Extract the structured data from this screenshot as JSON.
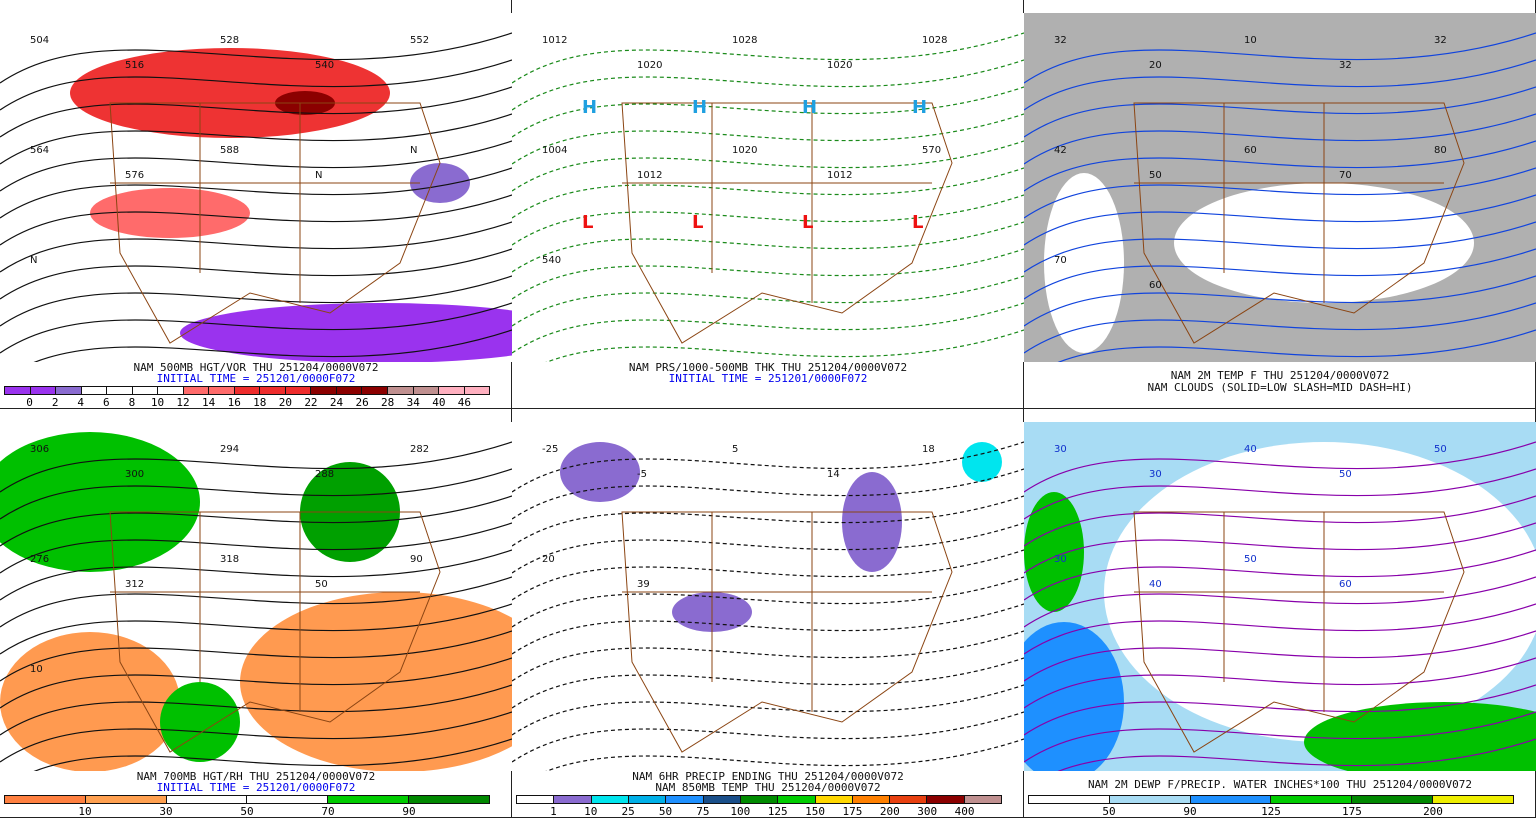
{
  "panels": [
    {
      "id": "p1",
      "title": "NAM 500MB HGT/VOR THU 251204/0000V072",
      "subtitle": "INITIAL TIME = 251201/0000F072",
      "map_labels": [
        "504",
        "516",
        "528",
        "540",
        "552",
        "564",
        "576",
        "588",
        "N",
        "N",
        "N"
      ],
      "colorbar": {
        "colors": [
          "#9a33ee",
          "#9a33ee",
          "#8a6bd0",
          "#ffffff",
          "#ffffff",
          "#ffffff",
          "#ffffff",
          "#ff6b6b",
          "#ff6b6b",
          "#ee2c2c",
          "#ee2c2c",
          "#ee2c2c",
          "#8b0000",
          "#8b0000",
          "#8b0000",
          "#c09090",
          "#c09090",
          "#ffb0c0",
          "#ffb0c0"
        ],
        "labels": [
          "0",
          "2",
          "4",
          "6",
          "8",
          "10",
          "12",
          "14",
          "16",
          "18",
          "20",
          "22",
          "24",
          "26",
          "28",
          "34",
          "40",
          "46"
        ]
      }
    },
    {
      "id": "p2",
      "title": "NAM PRS/1000-500MB THK THU 251204/0000V072",
      "subtitle": "INITIAL TIME = 251201/0000F072",
      "map_labels": [
        "1012",
        "1020",
        "1028",
        "1020",
        "1028",
        "1004",
        "1012",
        "1020",
        "1012",
        "570",
        "540"
      ],
      "highs_lows": [
        "H",
        "H",
        "H",
        "H",
        "L",
        "L",
        "L",
        "L"
      ]
    },
    {
      "id": "p3",
      "title": "NAM 2M TEMP F THU 251204/0000V072",
      "subtitle": "NAM CLOUDS (SOLID=LOW SLASH=MID DASH=HI)",
      "map_labels": [
        "32",
        "20",
        "10",
        "32",
        "32",
        "42",
        "50",
        "60",
        "70",
        "80",
        "70",
        "60"
      ]
    },
    {
      "id": "p4",
      "title": "NAM 700MB HGT/RH THU 251204/0000V072",
      "subtitle": "INITIAL TIME = 251201/0000F072",
      "map_labels": [
        "306",
        "300",
        "294",
        "288",
        "282",
        "276",
        "312",
        "318",
        "50",
        "90",
        "10"
      ],
      "colorbar": {
        "colors": [
          "#ff8040",
          "#ffa050",
          "#ffffff",
          "#ffffff",
          "#00cc00",
          "#008800"
        ],
        "labels": [
          "10",
          "30",
          "50",
          "70",
          "90"
        ]
      }
    },
    {
      "id": "p5",
      "title": "NAM 6HR PRECIP ENDING THU 251204/0000V072",
      "subtitle": "NAM 850MB TEMP THU 251204/0000V072",
      "map_labels": [
        "-25",
        "-5",
        "5",
        "14",
        "18",
        "20",
        "39"
      ],
      "colorbar": {
        "colors": [
          "#ffffff",
          "#8a6bd0",
          "#00e5ee",
          "#00b0e8",
          "#1e90ff",
          "#1a4f8a",
          "#008b00",
          "#00cd00",
          "#ffd700",
          "#ff8000",
          "#e84010",
          "#8b0000",
          "#c09090"
        ],
        "labels": [
          "1",
          "10",
          "25",
          "50",
          "75",
          "100",
          "125",
          "150",
          "175",
          "200",
          "300",
          "400"
        ]
      }
    },
    {
      "id": "p6",
      "title": "NAM 2M DEWP F/PRECIP. WATER INCHES*100 THU 251204/0000V072",
      "subtitle": "",
      "map_labels": [
        "30",
        "30",
        "40",
        "50",
        "50",
        "30",
        "40",
        "50",
        "60"
      ],
      "colorbar": {
        "colors": [
          "#ffffff",
          "#a8dcf4",
          "#1e90ff",
          "#00cc00",
          "#008800",
          "#eeee00"
        ],
        "labels": [
          "50",
          "90",
          "125",
          "175",
          "200"
        ]
      }
    }
  ]
}
